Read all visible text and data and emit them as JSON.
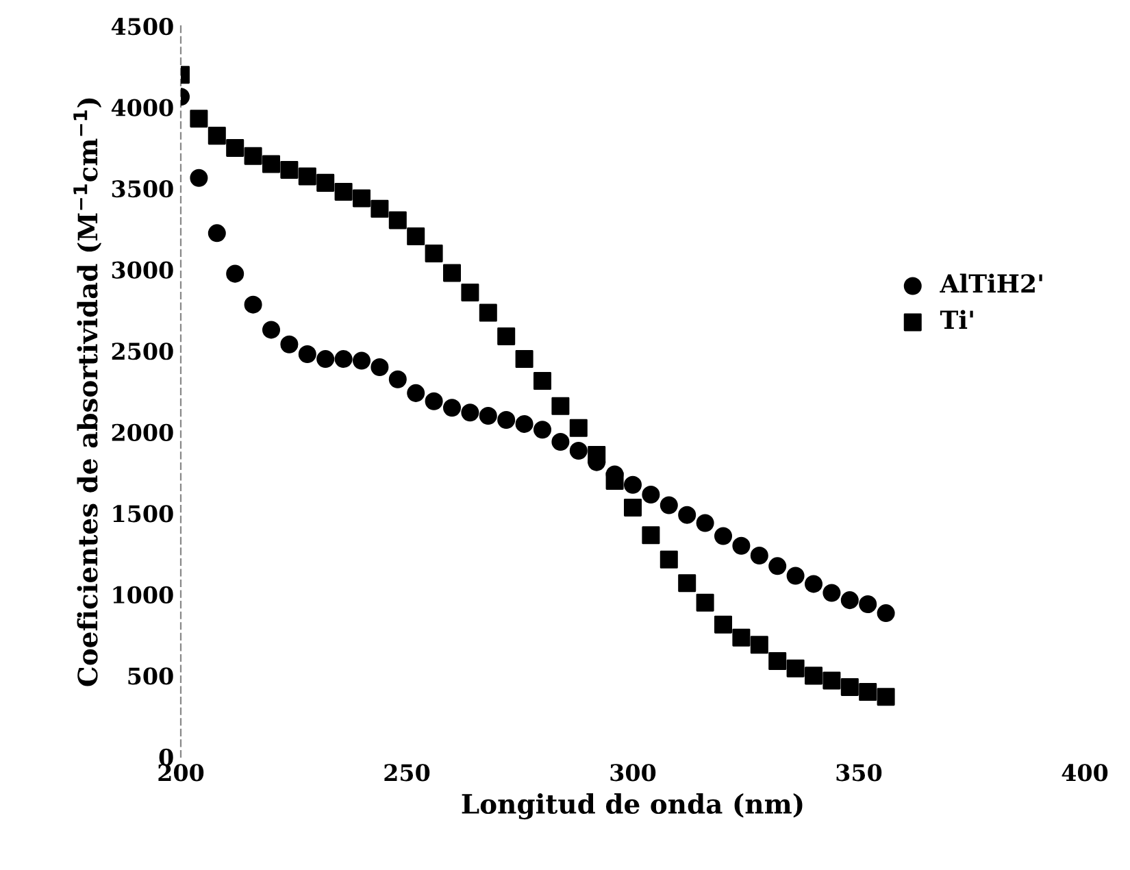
{
  "chart_data": {
    "type": "scatter",
    "xlabel": "Longitud de onda (nm)",
    "ylabel": "Coeficientes de absortividad (M$^{−1}$cm$^{−1}$)",
    "x": [
      200,
      204,
      208,
      212,
      216,
      220,
      224,
      228,
      232,
      236,
      240,
      244,
      248,
      252,
      256,
      260,
      264,
      268,
      272,
      276,
      280,
      284,
      288,
      292,
      296,
      300,
      304,
      308,
      312,
      316,
      320,
      324,
      328,
      332,
      336,
      340,
      344,
      348,
      352,
      356
    ],
    "series": [
      {
        "name": "AlTiH2'",
        "color": "#000000",
        "marker": "circle",
        "values": [
          4065,
          3565,
          3225,
          2975,
          2785,
          2630,
          2540,
          2480,
          2450,
          2450,
          2440,
          2400,
          2325,
          2240,
          2190,
          2150,
          2120,
          2100,
          2075,
          2050,
          2015,
          1940,
          1885,
          1815,
          1740,
          1675,
          1615,
          1550,
          1490,
          1440,
          1360,
          1300,
          1240,
          1175,
          1115,
          1065,
          1010,
          965,
          940,
          885
        ]
      },
      {
        "name": "Ti'",
        "color": "#000000",
        "marker": "square",
        "values": [
          4200,
          3930,
          3825,
          3750,
          3700,
          3650,
          3615,
          3575,
          3535,
          3480,
          3440,
          3375,
          3305,
          3205,
          3100,
          2980,
          2860,
          2735,
          2590,
          2450,
          2315,
          2160,
          2025,
          1860,
          1700,
          1535,
          1365,
          1215,
          1070,
          950,
          815,
          735,
          690,
          590,
          545,
          500,
          470,
          430,
          400,
          370
        ]
      }
    ],
    "xlim": [
      200,
      400
    ],
    "ylim": [
      0,
      4500
    ],
    "xticks": [
      200,
      250,
      300,
      350,
      400
    ],
    "yticks": [
      0,
      500,
      1000,
      1500,
      2000,
      2500,
      3000,
      3500,
      4000,
      4500
    ],
    "legend": "right",
    "grid": false
  }
}
